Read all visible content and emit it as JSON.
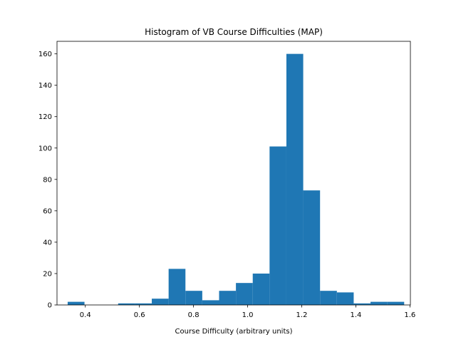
{
  "chart_data": {
    "type": "bar",
    "title": "Histogram of VB Course Difficulties (MAP)",
    "xlabel": "Course Difficulty (arbitrary units)",
    "ylabel": "",
    "xlim": [
      0.2953,
      1.6017
    ],
    "ylim": [
      0,
      168
    ],
    "xticks": [
      0.4,
      0.6,
      0.8,
      1.0,
      1.2,
      1.4,
      1.6
    ],
    "xtick_labels": [
      "0.4",
      "0.6",
      "0.8",
      "1.0",
      "1.2",
      "1.4",
      "1.6"
    ],
    "yticks": [
      0,
      20,
      40,
      60,
      80,
      100,
      120,
      140,
      160
    ],
    "ytick_labels": [
      "0",
      "20",
      "40",
      "60",
      "80",
      "100",
      "120",
      "140",
      "160"
    ],
    "bin_edges": [
      0.3347,
      0.3969,
      0.4591,
      0.5213,
      0.5835,
      0.6457,
      0.7079,
      0.7701,
      0.8323,
      0.8945,
      0.9567,
      1.0189,
      1.0811,
      1.1433,
      1.2055,
      1.2677,
      1.3299,
      1.3921,
      1.4543,
      1.5165,
      1.5787
    ],
    "counts": [
      2,
      0,
      0,
      1,
      1,
      4,
      23,
      9,
      3,
      9,
      14,
      20,
      101,
      160,
      73,
      9,
      8,
      1,
      2,
      2
    ],
    "bar_color": "#1f77b4",
    "grid": false,
    "legend": "none"
  }
}
